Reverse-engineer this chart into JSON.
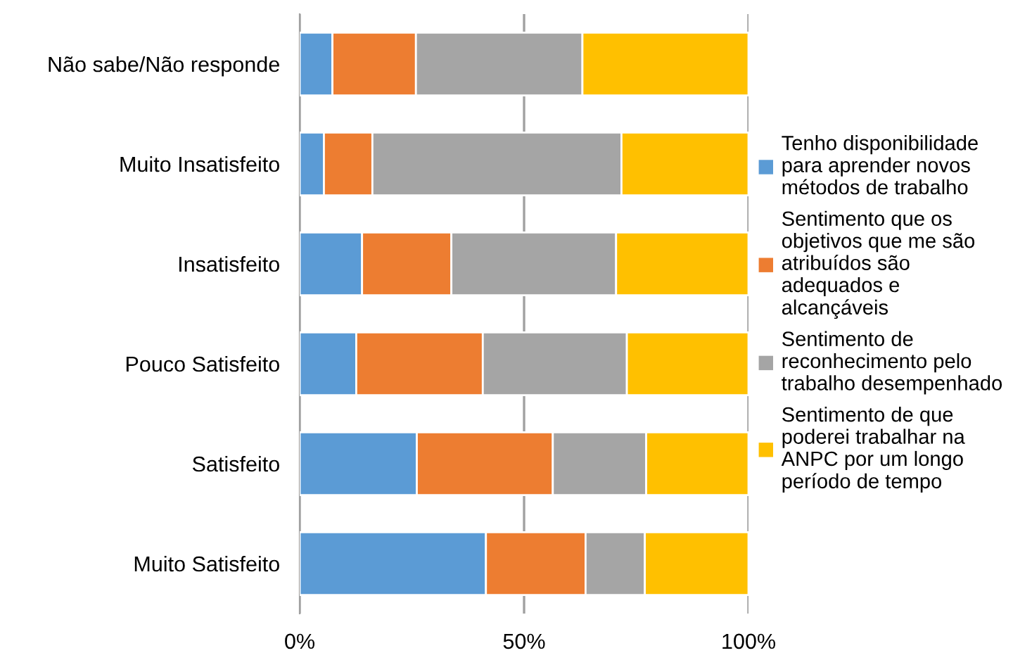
{
  "chart_data": {
    "type": "bar",
    "orientation": "horizontal",
    "stacked": true,
    "categories": [
      "Não sabe/Não responde",
      "Muito Insatisfeito",
      "Insatisfeito",
      "Pouco Satisfeito",
      "Satisfeito",
      "Muito Satisfeito"
    ],
    "series": [
      {
        "name": "Tenho disponibilidade para aprender novos métodos de trabalho",
        "color": "#5b9bd5",
        "values": [
          7.3,
          5.4,
          13.9,
          12.6,
          26.1,
          41.5
        ]
      },
      {
        "name": "Sentimento que os objetivos que me são atribuídos são adequados e alcançáveis",
        "color": "#ed7d31",
        "values": [
          18.6,
          10.8,
          19.9,
          28.2,
          30.3,
          22.2
        ]
      },
      {
        "name": "Sentimento de reconhecimento pelo trabalho desempenhado",
        "color": "#a5a5a5",
        "values": [
          37.1,
          55.5,
          36.7,
          32.1,
          20.8,
          13.2
        ]
      },
      {
        "name": "Sentimento de que poderei trabalhar na ANPC por um longo período de tempo",
        "color": "#ffc000",
        "values": [
          37.0,
          28.3,
          29.5,
          27.1,
          22.8,
          23.1
        ]
      }
    ],
    "xlim": [
      0,
      100
    ],
    "xticks": [
      {
        "value": 0,
        "label": "0%"
      },
      {
        "value": 50,
        "label": "50%"
      },
      {
        "value": 100,
        "label": "100%"
      }
    ],
    "grid": "x",
    "legend": "right"
  }
}
